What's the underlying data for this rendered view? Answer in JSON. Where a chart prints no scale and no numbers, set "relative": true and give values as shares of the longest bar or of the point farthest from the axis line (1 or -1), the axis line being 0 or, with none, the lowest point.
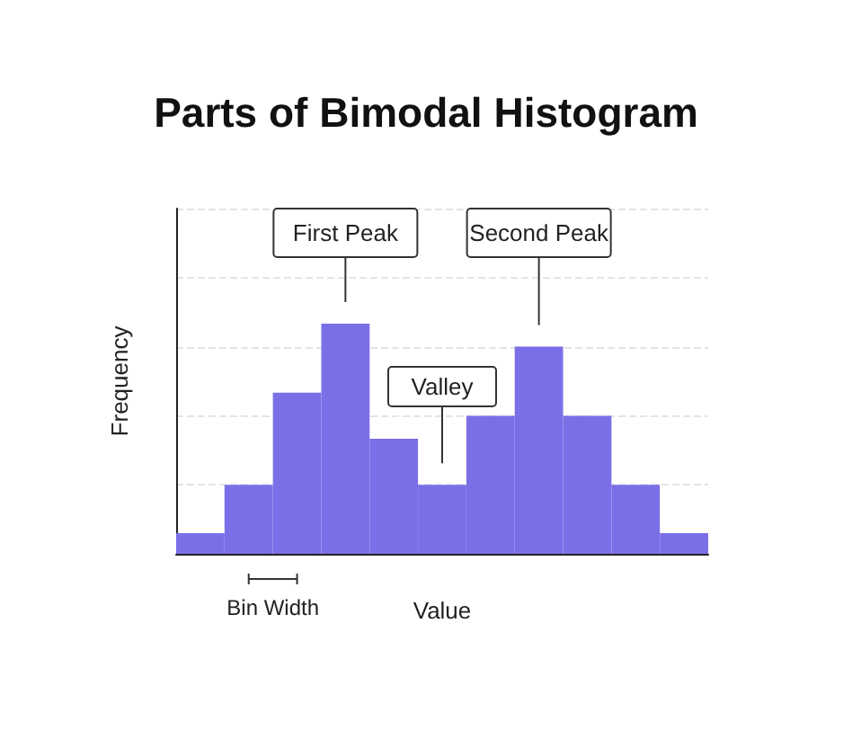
{
  "chart_data": {
    "type": "bar",
    "title": "Parts of Bimodal Histogram",
    "xlabel": "Value",
    "ylabel": "Frequency",
    "categories": [
      null,
      null,
      null,
      null,
      null,
      null,
      null,
      null,
      null,
      null,
      null
    ],
    "relative": true,
    "values": [
      0.09,
      0.3,
      0.7,
      1,
      0.5,
      0.3,
      0.6,
      0.9,
      0.6,
      0.3,
      0.09
    ],
    "color": "#7b6fe8",
    "annotations": [
      "First Peak",
      "Second Peak",
      "Valley",
      "Bin Width"
    ],
    "grid": "y"
  }
}
